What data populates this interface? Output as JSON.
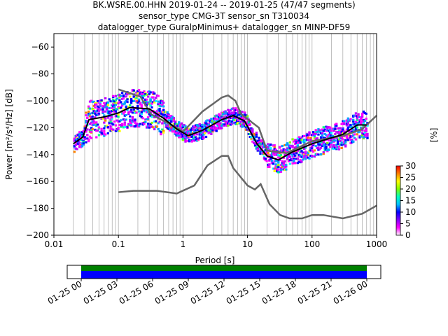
{
  "chart_data": {
    "type": "heatmap",
    "title_lines": [
      "BK.WSRE.00.HHN   2019-01-24 -- 2019-01-25  (47/47 segments)",
      "sensor_type CMG-3T sensor_sn T310034",
      "datalogger_type GuralpMinimus+ datalogger_sn MINP-DF59"
    ],
    "xlabel": "Period [s]",
    "ylabel": "Power [m²/s⁴/Hz] [dB]",
    "xscale": "log",
    "xlim": [
      0.01,
      1000
    ],
    "ylim": [
      -200,
      -50
    ],
    "xticks": [
      {
        "v": 0.01,
        "label": "0.01"
      },
      {
        "v": 0.1,
        "label": "0.1"
      },
      {
        "v": 1,
        "label": "1"
      },
      {
        "v": 10,
        "label": "10"
      },
      {
        "v": 100,
        "label": "100"
      },
      {
        "v": 1000,
        "label": "1000"
      }
    ],
    "yticks": [
      {
        "v": -200,
        "label": "−200"
      },
      {
        "v": -180,
        "label": "−180"
      },
      {
        "v": -160,
        "label": "−160"
      },
      {
        "v": -140,
        "label": "−140"
      },
      {
        "v": -120,
        "label": "−120"
      },
      {
        "v": -100,
        "label": "−100"
      },
      {
        "v": -80,
        "label": "−80"
      },
      {
        "v": -60,
        "label": "−60"
      }
    ],
    "grid": "vertical-minor",
    "series": [
      {
        "name": "NHNM",
        "color": "#666666",
        "x": [
          0.1,
          0.22,
          0.32,
          0.8,
          1.0,
          2.0,
          4.0,
          5.0,
          6.5,
          8.0,
          15,
          20,
          40,
          100,
          300,
          600,
          1000
        ],
        "y": [
          -91.5,
          -97,
          -110,
          -120,
          -123,
          -108,
          -97.5,
          -96,
          -100,
          -110,
          -120,
          -137,
          -139,
          -130,
          -126,
          -121,
          -111
        ]
      },
      {
        "name": "NLNM",
        "color": "#666666",
        "x": [
          0.1,
          0.17,
          0.4,
          0.8,
          1.5,
          2.4,
          4,
          5,
          6,
          10,
          13,
          16,
          22,
          32,
          45,
          70,
          100,
          150,
          300,
          600,
          1000
        ],
        "y": [
          -168,
          -167,
          -167,
          -169,
          -163,
          -148,
          -141,
          -141,
          -150,
          -163,
          -166,
          -162,
          -177,
          -185,
          -187.5,
          -187.5,
          -185,
          -185,
          -187.5,
          -184,
          -178
        ]
      },
      {
        "name": "median",
        "color": "#000000",
        "x": [
          0.02,
          0.028,
          0.035,
          0.06,
          0.1,
          0.15,
          0.3,
          0.5,
          0.8,
          1.2,
          2,
          4,
          6,
          9,
          14,
          20,
          30,
          50,
          100,
          300,
          500,
          700
        ],
        "y": [
          -132,
          -127,
          -114,
          -112,
          -109,
          -105,
          -106,
          -113,
          -121,
          -126,
          -122,
          -114,
          -111,
          -115,
          -132,
          -141,
          -144,
          -138,
          -132,
          -125,
          -118,
          -118
        ]
      }
    ],
    "colorbar": {
      "label": "[%]",
      "range": [
        0,
        30
      ],
      "ticks": [
        {
          "v": 0,
          "label": "0"
        },
        {
          "v": 5,
          "label": "5"
        },
        {
          "v": 10,
          "label": "10"
        },
        {
          "v": 15,
          "label": "15"
        },
        {
          "v": 20,
          "label": "20"
        },
        {
          "v": 25,
          "label": "25"
        },
        {
          "v": 30,
          "label": "30"
        }
      ]
    },
    "coverage": {
      "tick_labels": [
        "01-25 00",
        "01-25 03",
        "01-25 06",
        "01-25 09",
        "01-25 12",
        "01-25 15",
        "01-25 18",
        "01-25 21",
        "01-26 00"
      ],
      "data_color": "#008000",
      "used_color": "#0000ff",
      "coverage_fraction": 1.0
    }
  }
}
